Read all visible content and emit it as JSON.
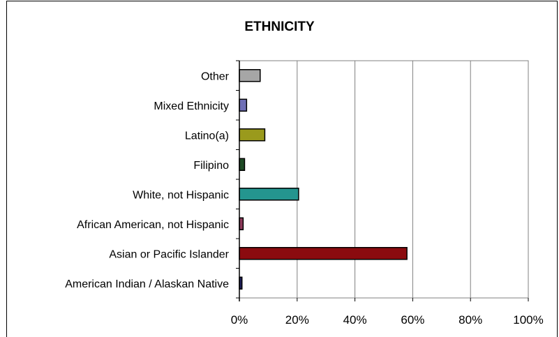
{
  "chart_data": {
    "type": "bar",
    "orientation": "horizontal",
    "title": "ETHNICITY",
    "xlabel": "",
    "ylabel": "",
    "xlim": [
      0,
      100
    ],
    "x_ticks": [
      "0%",
      "20%",
      "40%",
      "60%",
      "80%",
      "100%"
    ],
    "grid": true,
    "legend": "none",
    "categories": [
      "Other",
      "Mixed Ethnicity",
      "Latino(a)",
      "Filipino",
      "White, not Hispanic",
      "African American, not Hispanic",
      "Asian or Pacific Islander",
      "American Indian / Alaskan Native"
    ],
    "values": [
      7.2,
      2.5,
      8.8,
      1.8,
      20.5,
      1.3,
      58.0,
      0.9
    ],
    "colors": [
      "#a6a6a6",
      "#6f6fb6",
      "#9a9a1c",
      "#1e4a24",
      "#24958f",
      "#8c3a5a",
      "#8b0b0f",
      "#1f1f5a"
    ]
  }
}
